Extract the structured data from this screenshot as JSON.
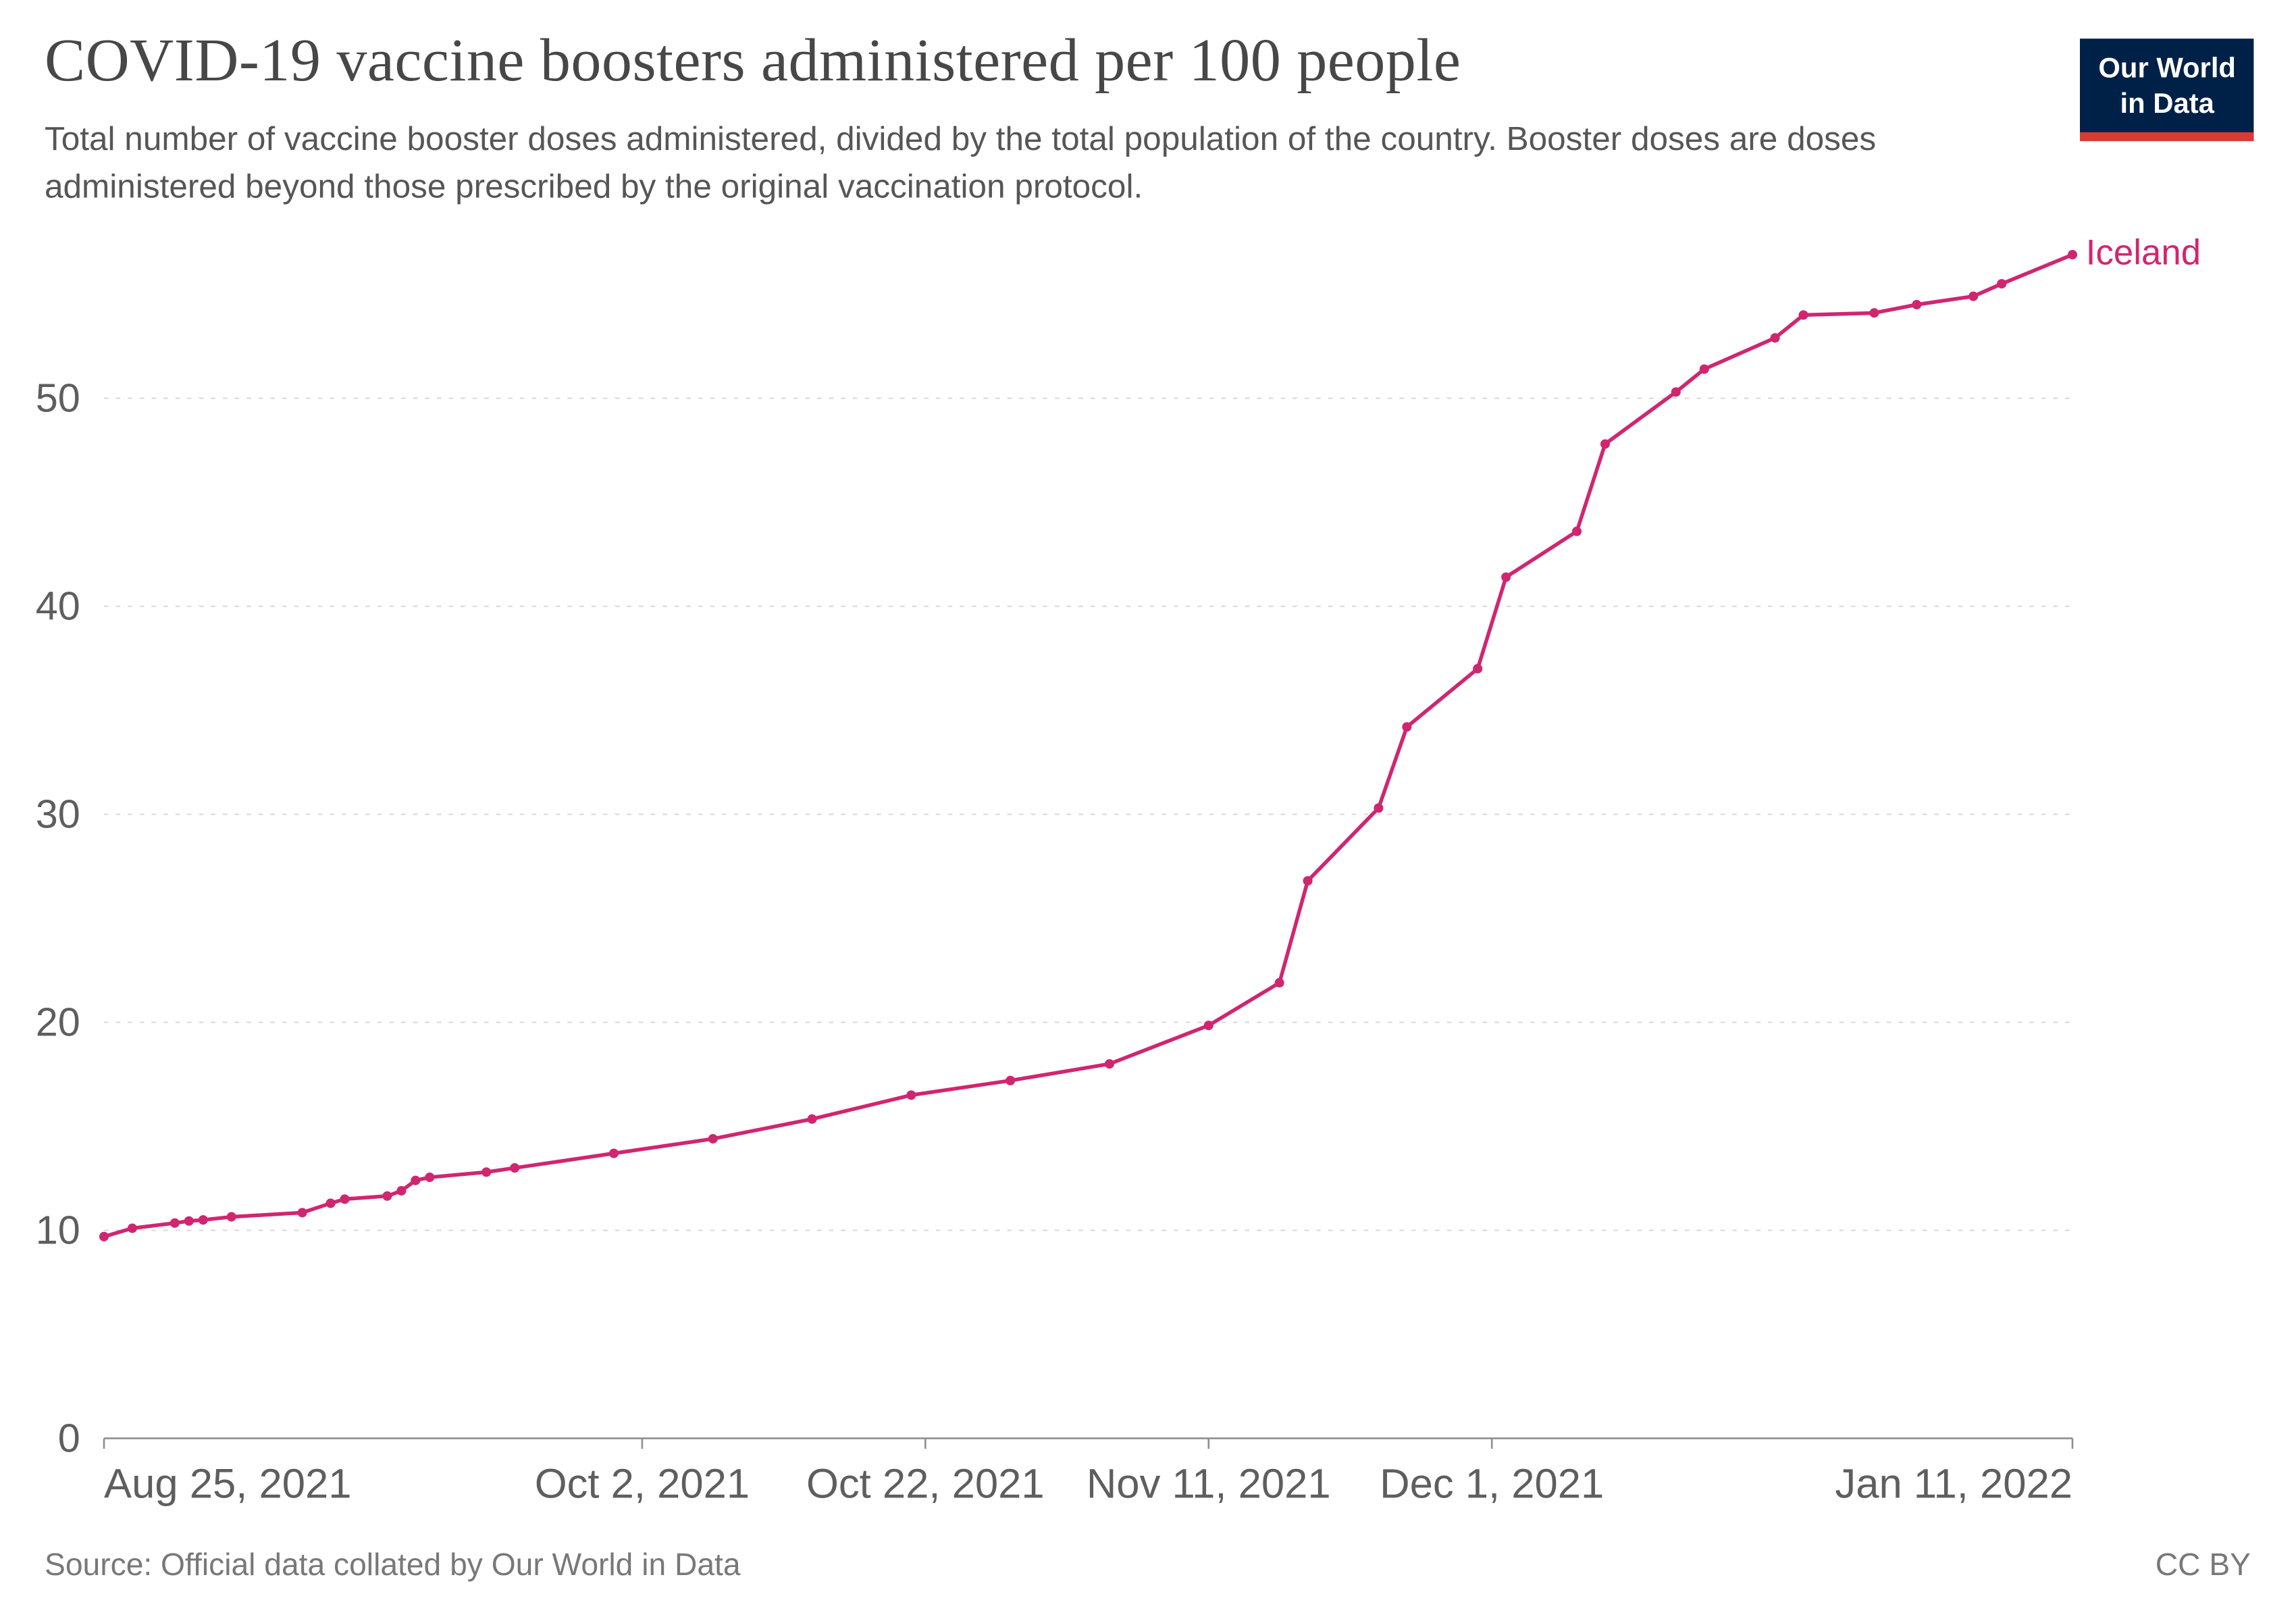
{
  "header": {
    "title": "COVID-19 vaccine boosters administered per 100 people",
    "subtitle": "Total number of vaccine booster doses administered, divided by the total population of the country. Booster doses are doses administered beyond those prescribed by the original vaccination protocol.",
    "logo_line1": "Our World",
    "logo_line2": "in Data"
  },
  "footer": {
    "source": "Source: Official data collated by Our World in Data",
    "license": "CC BY"
  },
  "colors": {
    "accent": "#d02670",
    "grid": "#dcdcdc",
    "axis": "#8f8f8f",
    "tick_text": "#5e5e5e",
    "logo_bg": "#002147",
    "logo_stripe": "#d93b33"
  },
  "chart_data": {
    "type": "line",
    "title": "COVID-19 vaccine boosters administered per 100 people",
    "xlabel": "",
    "ylabel": "",
    "grid": "dashed-horizontal",
    "legend_position": "end-of-line-label",
    "ylim": [
      0,
      57.5
    ],
    "yticks": [
      0,
      10,
      20,
      30,
      40,
      50
    ],
    "xlim_days": [
      0,
      139
    ],
    "x_ticks": [
      {
        "day": 0,
        "label": "Aug 25, 2021",
        "anchor": "start"
      },
      {
        "day": 38,
        "label": "Oct 2, 2021",
        "anchor": "middle"
      },
      {
        "day": 58,
        "label": "Oct 22, 2021",
        "anchor": "middle"
      },
      {
        "day": 78,
        "label": "Nov 11, 2021",
        "anchor": "middle"
      },
      {
        "day": 98,
        "label": "Dec 1, 2021",
        "anchor": "middle"
      },
      {
        "day": 139,
        "label": "Jan 11, 2022",
        "anchor": "end"
      }
    ],
    "series": [
      {
        "name": "Iceland",
        "color": "#d02670",
        "days": [
          0,
          2,
          5,
          6,
          7,
          9,
          14,
          16,
          17,
          20,
          21,
          22,
          23,
          27,
          29,
          36,
          43,
          50,
          57,
          64,
          71,
          78,
          83,
          85,
          90,
          92,
          97,
          99,
          104,
          106,
          111,
          113,
          118,
          120,
          125,
          128,
          132,
          134,
          139
        ],
        "values": [
          9.7,
          10.1,
          10.35,
          10.45,
          10.5,
          10.65,
          10.85,
          11.3,
          11.5,
          11.65,
          11.9,
          12.4,
          12.55,
          12.8,
          13.0,
          13.7,
          14.4,
          15.35,
          16.5,
          17.2,
          18.0,
          19.85,
          21.9,
          26.8,
          30.3,
          34.2,
          37.0,
          41.4,
          43.6,
          47.8,
          50.3,
          51.4,
          52.9,
          54.0,
          54.1,
          54.5,
          54.9,
          55.5,
          56.9
        ]
      }
    ]
  }
}
